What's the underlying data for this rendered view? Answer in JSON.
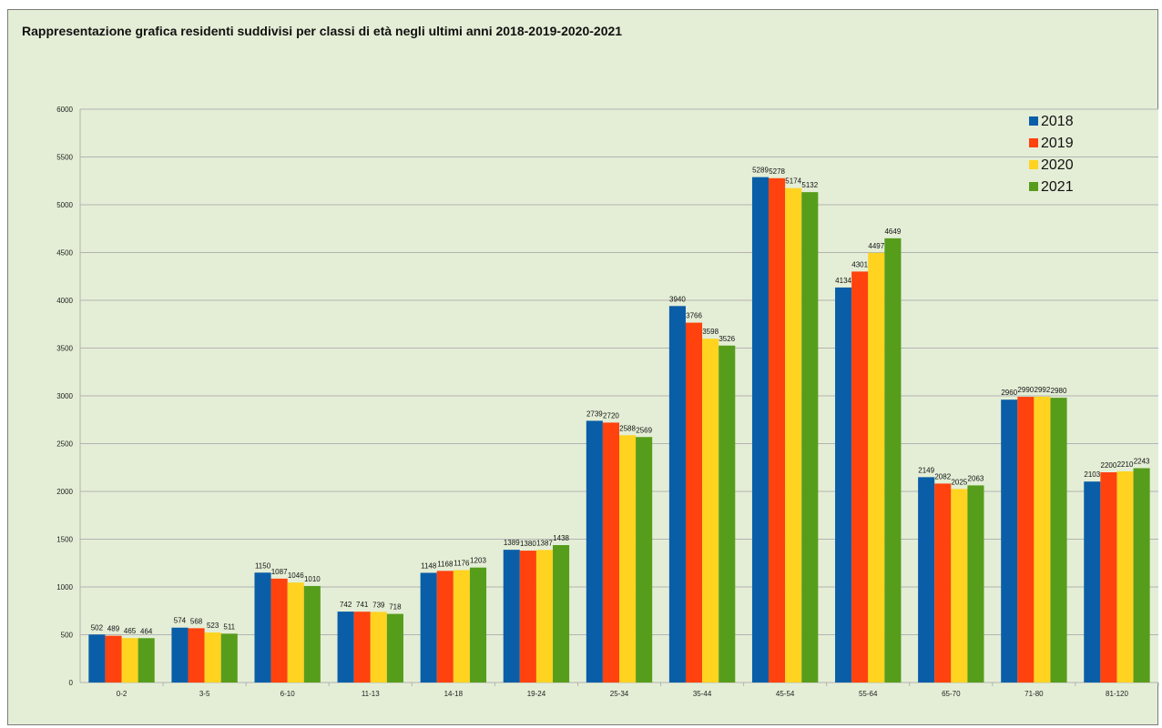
{
  "chart_data": {
    "type": "bar",
    "title": "Rappresentazione grafica residenti suddivisi per classi di età negli ultimi anni 2018-2019-2020-2021",
    "xlabel": "",
    "ylabel": "",
    "ylim": [
      0,
      6000
    ],
    "yticks": [
      0,
      500,
      1000,
      1500,
      2000,
      2500,
      3000,
      3500,
      4000,
      4500,
      5000,
      5500,
      6000
    ],
    "grid": true,
    "legend_position": "top-right",
    "categories": [
      "0-2",
      "3-5",
      "6-10",
      "11-13",
      "14-18",
      "19-24",
      "25-34",
      "35-44",
      "45-54",
      "55-64",
      "65-70",
      "71-80",
      "81-120"
    ],
    "series": [
      {
        "name": "2018",
        "color": "#0a5ea8",
        "values": [
          502,
          574,
          1150,
          742,
          1148,
          1389,
          2739,
          3940,
          5289,
          4134,
          2149,
          2960,
          2103
        ]
      },
      {
        "name": "2019",
        "color": "#ff420e",
        "values": [
          489,
          568,
          1087,
          741,
          1168,
          1380,
          2720,
          3766,
          5278,
          4301,
          2082,
          2990,
          2200
        ]
      },
      {
        "name": "2020",
        "color": "#ffd320",
        "values": [
          465,
          523,
          1046,
          739,
          1176,
          1387,
          2588,
          3598,
          5174,
          4497,
          2025,
          2992,
          2210
        ]
      },
      {
        "name": "2021",
        "color": "#579d1c",
        "values": [
          464,
          511,
          1010,
          718,
          1203,
          1438,
          2569,
          3526,
          5132,
          4649,
          2063,
          2980,
          2243
        ]
      }
    ]
  }
}
